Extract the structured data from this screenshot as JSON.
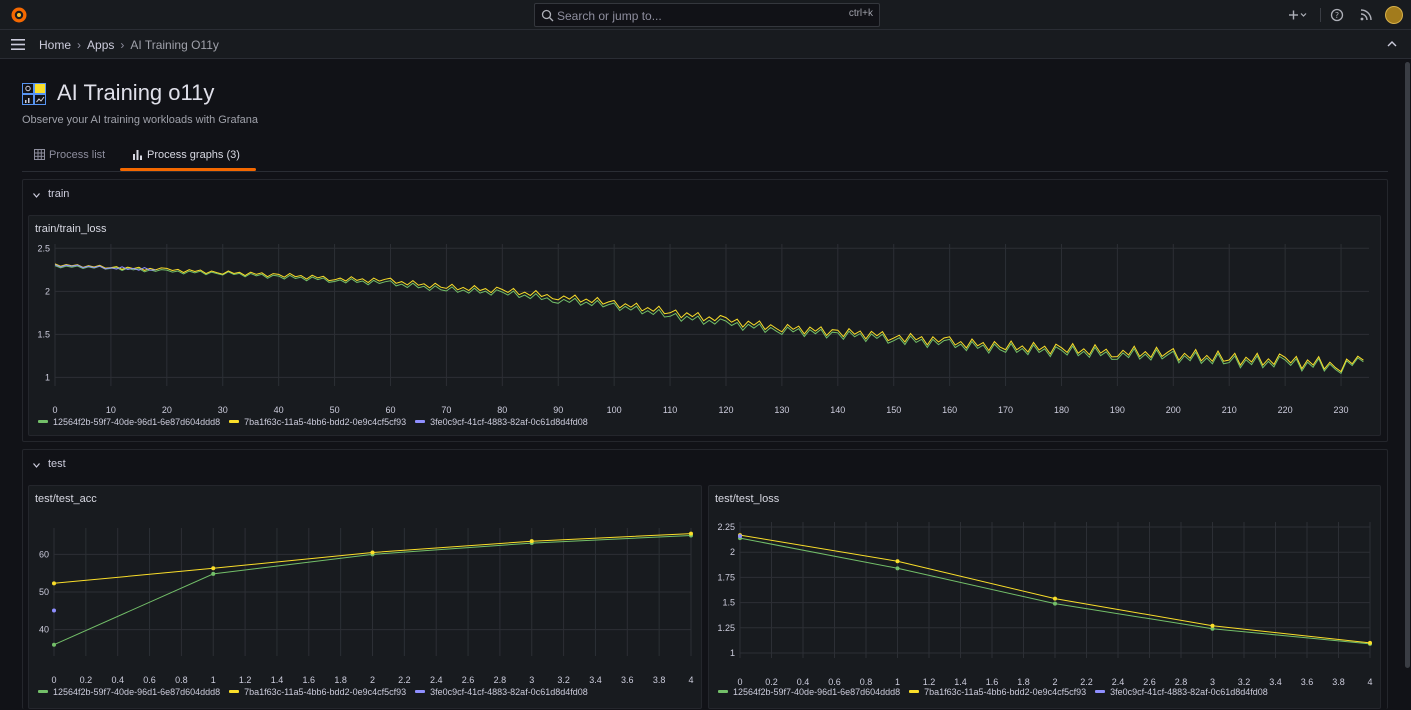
{
  "topbar": {
    "search_placeholder": "Search or jump to...",
    "search_shortcut": "ctrl+k",
    "icons": [
      "grafana-logo-icon",
      "search-icon",
      "plus-icon",
      "chevron-down-icon",
      "help-icon",
      "rss-icon",
      "avatar"
    ]
  },
  "breadcrumb": {
    "home": "Home",
    "apps": "Apps",
    "current": "AI Training O11y"
  },
  "page": {
    "title": "AI Training o11y",
    "subtitle": "Observe your AI training workloads with Grafana"
  },
  "tabs": [
    {
      "label": "Process list",
      "active": false
    },
    {
      "label": "Process graphs (3)",
      "active": true
    }
  ],
  "rows": {
    "train": "train",
    "test": "test"
  },
  "colors": {
    "green": "#73bf69",
    "yellow": "#fade2a",
    "blue": "#8f8fff",
    "accent": "#f46800"
  },
  "series_names": [
    "12564f2b-59f7-40de-96d1-6e87d604ddd8",
    "7ba1f63c-11a5-4bb6-bdd2-0e9c4cf5cf93",
    "3fe0c9cf-41cf-4883-82af-0c61d8d4fd08"
  ],
  "chart_data": [
    {
      "id": "train_loss",
      "type": "line",
      "title": "train/train_loss",
      "xlim": [
        0,
        235
      ],
      "ylim": [
        0.9,
        2.55
      ],
      "xticks": [
        0,
        10,
        20,
        30,
        40,
        50,
        60,
        70,
        80,
        90,
        100,
        110,
        120,
        130,
        140,
        150,
        160,
        170,
        180,
        190,
        200,
        210,
        220,
        230
      ],
      "yticks": [
        1,
        1.5,
        2,
        2.5
      ],
      "grid": true,
      "legend": "bottom-left",
      "series": [
        {
          "name": "12564f2b-59f7-40de-96d1-6e87d604ddd8",
          "color": "#73bf69",
          "points": [
            [
              0,
              2.29
            ],
            [
              10,
              2.27
            ],
            [
              20,
              2.23
            ],
            [
              30,
              2.21
            ],
            [
              40,
              2.17
            ],
            [
              50,
              2.13
            ],
            [
              60,
              2.09
            ],
            [
              70,
              2.02
            ],
            [
              80,
              1.98
            ],
            [
              90,
              1.9
            ],
            [
              100,
              1.83
            ],
            [
              110,
              1.72
            ],
            [
              120,
              1.62
            ],
            [
              130,
              1.55
            ],
            [
              140,
              1.5
            ],
            [
              150,
              1.45
            ],
            [
              160,
              1.38
            ],
            [
              170,
              1.33
            ],
            [
              180,
              1.3
            ],
            [
              190,
              1.27
            ],
            [
              200,
              1.24
            ],
            [
              210,
              1.19
            ],
            [
              220,
              1.16
            ],
            [
              230,
              1.13
            ],
            [
              234,
              1.18
            ]
          ]
        },
        {
          "name": "7ba1f63c-11a5-4bb6-bdd2-0e9c4cf5cf93",
          "color": "#fade2a",
          "points": [
            [
              0,
              2.31
            ],
            [
              10,
              2.28
            ],
            [
              20,
              2.25
            ],
            [
              30,
              2.22
            ],
            [
              40,
              2.19
            ],
            [
              50,
              2.15
            ],
            [
              60,
              2.12
            ],
            [
              70,
              2.05
            ],
            [
              80,
              2.01
            ],
            [
              90,
              1.94
            ],
            [
              100,
              1.86
            ],
            [
              110,
              1.76
            ],
            [
              120,
              1.66
            ],
            [
              130,
              1.58
            ],
            [
              140,
              1.53
            ],
            [
              150,
              1.48
            ],
            [
              160,
              1.41
            ],
            [
              170,
              1.36
            ],
            [
              180,
              1.33
            ],
            [
              190,
              1.3
            ],
            [
              200,
              1.27
            ],
            [
              210,
              1.22
            ],
            [
              220,
              1.19
            ],
            [
              230,
              1.15
            ],
            [
              234,
              1.2
            ]
          ]
        },
        {
          "name": "3fe0c9cf-41cf-4883-82af-0c61d8d4fd08",
          "color": "#8f8fff",
          "points": [
            [
              0,
              2.3
            ],
            [
              5,
              2.29
            ],
            [
              10,
              2.27
            ],
            [
              15,
              2.26
            ],
            [
              18,
              2.25
            ]
          ]
        }
      ]
    },
    {
      "id": "test_acc",
      "type": "line",
      "title": "test/test_acc",
      "xlim": [
        0,
        4
      ],
      "ylim": [
        33,
        67
      ],
      "xticks": [
        0,
        0.2,
        0.4,
        0.6,
        0.8,
        1,
        1.2,
        1.4,
        1.6,
        1.8,
        2,
        2.2,
        2.4,
        2.6,
        2.8,
        3,
        3.2,
        3.4,
        3.6,
        3.8,
        4
      ],
      "yticks": [
        40,
        50,
        60
      ],
      "grid": true,
      "legend": "bottom-left",
      "series": [
        {
          "name": "12564f2b-59f7-40de-96d1-6e87d604ddd8",
          "color": "#73bf69",
          "points": [
            [
              0,
              36
            ],
            [
              1,
              54.8
            ],
            [
              2,
              60
            ],
            [
              3,
              63
            ],
            [
              4,
              65
            ]
          ]
        },
        {
          "name": "7ba1f63c-11a5-4bb6-bdd2-0e9c4cf5cf93",
          "color": "#fade2a",
          "points": [
            [
              0,
              52.3
            ],
            [
              1,
              56.3
            ],
            [
              2,
              60.5
            ],
            [
              3,
              63.5
            ],
            [
              4,
              65.5
            ]
          ]
        },
        {
          "name": "3fe0c9cf-41cf-4883-82af-0c61d8d4fd08",
          "color": "#8f8fff",
          "points": [
            [
              0,
              45.1
            ]
          ]
        }
      ]
    },
    {
      "id": "test_loss",
      "type": "line",
      "title": "test/test_loss",
      "xlim": [
        0,
        4
      ],
      "ylim": [
        0.95,
        2.3
      ],
      "xticks": [
        0,
        0.2,
        0.4,
        0.6,
        0.8,
        1,
        1.2,
        1.4,
        1.6,
        1.8,
        2,
        2.2,
        2.4,
        2.6,
        2.8,
        3,
        3.2,
        3.4,
        3.6,
        3.8,
        4
      ],
      "yticks": [
        1,
        1.25,
        1.5,
        1.75,
        2,
        2.25
      ],
      "grid": true,
      "legend": "bottom-left",
      "series": [
        {
          "name": "12564f2b-59f7-40de-96d1-6e87d604ddd8",
          "color": "#73bf69",
          "points": [
            [
              0,
              2.14
            ],
            [
              1,
              1.84
            ],
            [
              2,
              1.49
            ],
            [
              3,
              1.24
            ],
            [
              4,
              1.09
            ]
          ]
        },
        {
          "name": "7ba1f63c-11a5-4bb6-bdd2-0e9c4cf5cf93",
          "color": "#fade2a",
          "points": [
            [
              0,
              2.17
            ],
            [
              1,
              1.91
            ],
            [
              2,
              1.54
            ],
            [
              3,
              1.27
            ],
            [
              4,
              1.1
            ]
          ]
        },
        {
          "name": "3fe0c9cf-41cf-4883-82af-0c61d8d4fd08",
          "color": "#8f8fff",
          "points": [
            [
              0,
              2.16
            ]
          ]
        }
      ]
    }
  ]
}
